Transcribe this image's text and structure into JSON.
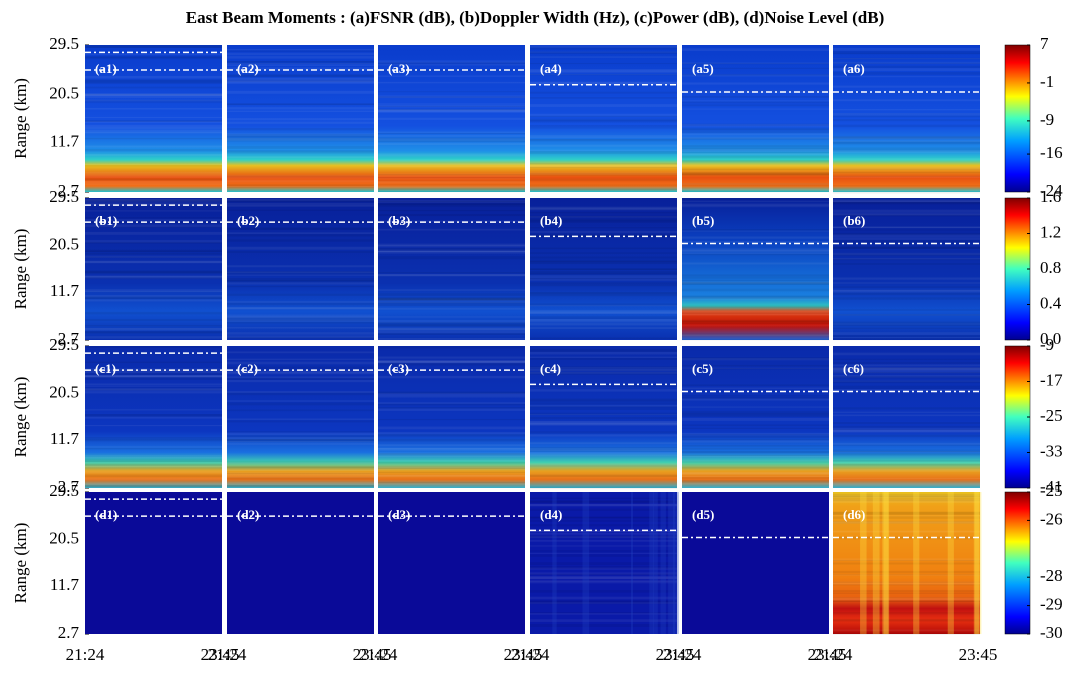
{
  "chart_data": {
    "type": "heatmap",
    "title": "East Beam Moments : (a)FSNR (dB), (b)Doppler Width (Hz), (c)Power (dB), (d)Noise Level (dB)",
    "y_label": "Range (km)",
    "ylim": [
      2.7,
      29.5
    ],
    "yticks": [
      2.7,
      11.7,
      20.5,
      29.5
    ],
    "xtick_labels": [
      "21:24",
      "23:45"
    ],
    "rows": [
      {
        "panels": [
          "(a1)",
          "(a2)",
          "(a3)",
          "(a4)",
          "(a5)",
          "(a6)"
        ],
        "clim": [
          -24,
          7
        ],
        "cticks": [
          7,
          -1,
          -9,
          -16,
          -24
        ]
      },
      {
        "panels": [
          "(b1)",
          "(b2)",
          "(b3)",
          "(b4)",
          "(b5)",
          "(b6)"
        ],
        "clim": [
          0,
          1.6
        ],
        "cticks": [
          1.6,
          1.2,
          0.8,
          0.4,
          {
            "value": 0,
            "label": "0.0"
          }
        ]
      },
      {
        "panels": [
          "(c1)",
          "(c2)",
          "(c3)",
          "(c4)",
          "(c5)",
          "(c6)"
        ],
        "clim": [
          -41,
          -9
        ],
        "cticks": [
          -9,
          -17,
          -25,
          -33,
          -41
        ]
      },
      {
        "panels": [
          "(d1)",
          "(d2)",
          "(d3)",
          "(d4)",
          "(d5)",
          "(d6)"
        ],
        "clim": [
          -30,
          -25
        ],
        "cticks": [
          -25,
          -26,
          -28,
          -29,
          -30
        ]
      }
    ]
  }
}
